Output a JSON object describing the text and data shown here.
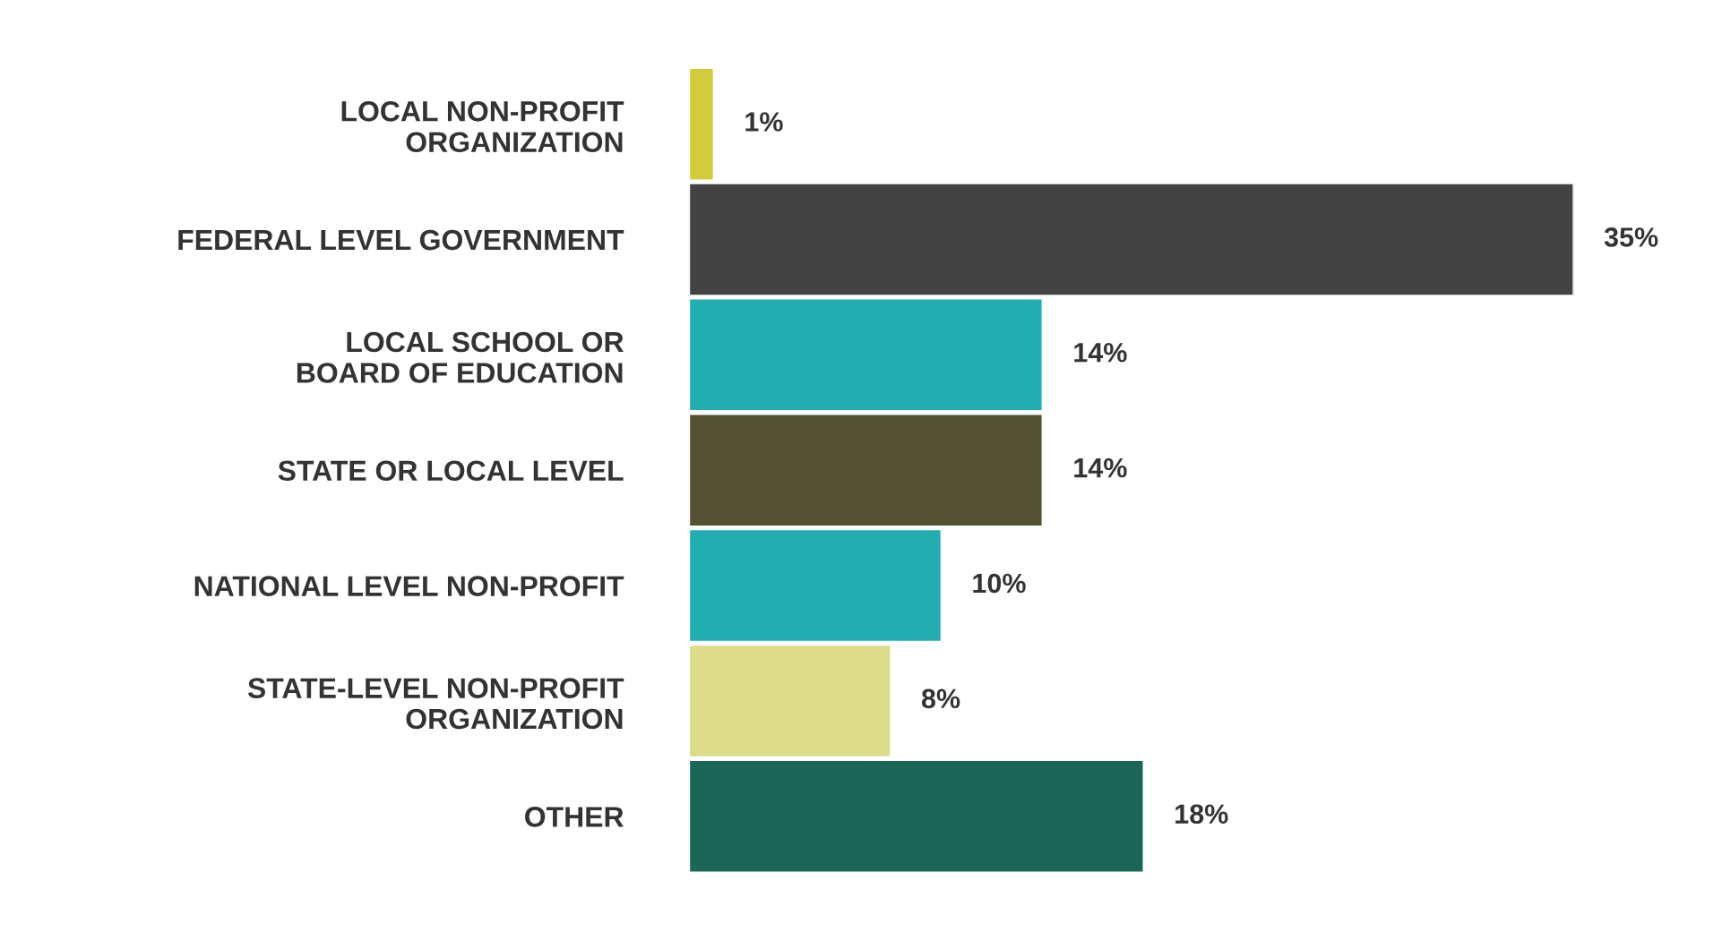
{
  "chart_data": {
    "type": "bar",
    "orientation": "horizontal",
    "categories": [
      "LOCAL NON-PROFIT\nORGANIZATION",
      "FEDERAL LEVEL GOVERNMENT",
      "LOCAL SCHOOL OR\nBOARD OF EDUCATION",
      "STATE OR LOCAL LEVEL",
      "NATIONAL LEVEL NON-PROFIT",
      "STATE-LEVEL NON-PROFIT\nORGANIZATION",
      "OTHER"
    ],
    "values": [
      1,
      35,
      14,
      14,
      10,
      8,
      18
    ],
    "value_labels": [
      "1%",
      "35%",
      "14%",
      "14%",
      "10%",
      "8%",
      "18%"
    ],
    "colors": [
      "#d2cb3c",
      "#434343",
      "#22adb0",
      "#545232",
      "#22adb0",
      "#dcdb88",
      "#1b6657"
    ],
    "grid": false,
    "legend": false
  }
}
